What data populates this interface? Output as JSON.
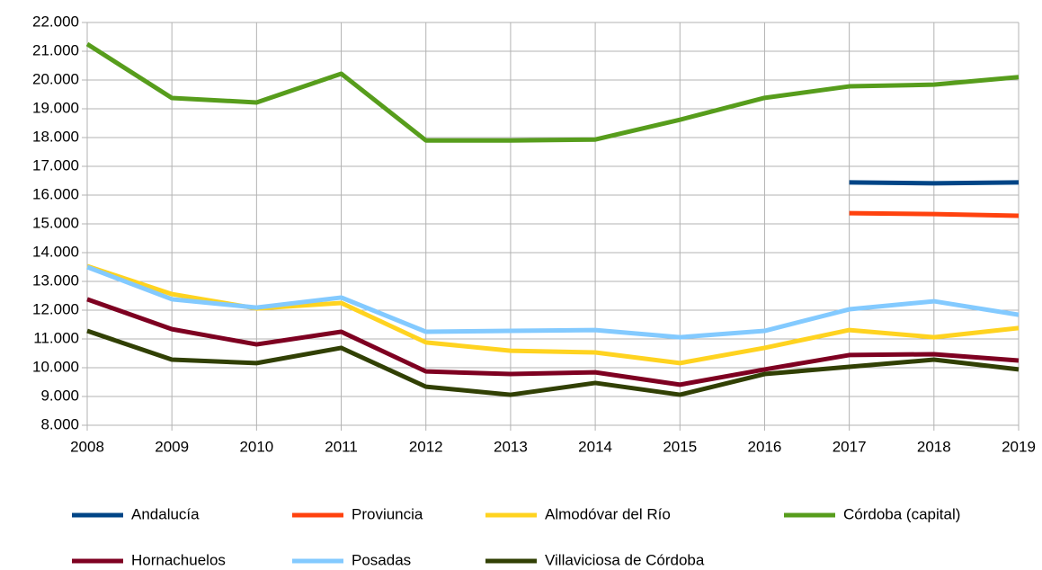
{
  "chart_data": {
    "type": "line",
    "categories": [
      "2008",
      "2009",
      "2010",
      "2011",
      "2012",
      "2013",
      "2014",
      "2015",
      "2016",
      "2017",
      "2018",
      "2019"
    ],
    "ylim": [
      8000,
      22000
    ],
    "yticks": [
      {
        "value": 8000,
        "label": "8.000"
      },
      {
        "value": 9000,
        "label": "9.000"
      },
      {
        "value": 10000,
        "label": "10.000"
      },
      {
        "value": 11000,
        "label": "11.000"
      },
      {
        "value": 12000,
        "label": "12.000"
      },
      {
        "value": 13000,
        "label": "13.000"
      },
      {
        "value": 14000,
        "label": "14.000"
      },
      {
        "value": 15000,
        "label": "15.000"
      },
      {
        "value": 16000,
        "label": "16.000"
      },
      {
        "value": 17000,
        "label": "17.000"
      },
      {
        "value": 18000,
        "label": "18.000"
      },
      {
        "value": 19000,
        "label": "19.000"
      },
      {
        "value": 20000,
        "label": "20.000"
      },
      {
        "value": 21000,
        "label": "21.000"
      },
      {
        "value": 22000,
        "label": "22.000"
      }
    ],
    "grid": true,
    "legend": "bottom",
    "series": [
      {
        "name": "Andalucía",
        "color": "#004586",
        "values": [
          null,
          null,
          null,
          null,
          null,
          null,
          null,
          null,
          null,
          16440,
          16410,
          16440
        ]
      },
      {
        "name": "Proviuncia",
        "color": "#ff420e",
        "values": [
          null,
          null,
          null,
          null,
          null,
          null,
          null,
          null,
          null,
          15370,
          15340,
          15280
        ]
      },
      {
        "name": "Almodóvar del Río",
        "color": "#ffd320",
        "values": [
          13530,
          12560,
          12060,
          12250,
          10880,
          10590,
          10530,
          10160,
          10690,
          11310,
          11060,
          11380
        ]
      },
      {
        "name": "Córdoba (capital)",
        "color": "#579d1c",
        "values": [
          21250,
          19375,
          19220,
          20220,
          17900,
          17900,
          17930,
          18620,
          19380,
          19780,
          19840,
          20100
        ]
      },
      {
        "name": "Hornachuelos",
        "color": "#7e0021",
        "values": [
          12380,
          11340,
          10810,
          11250,
          9870,
          9780,
          9840,
          9410,
          9940,
          10440,
          10470,
          10250
        ]
      },
      {
        "name": "Posadas",
        "color": "#83caff",
        "values": [
          13500,
          12380,
          12090,
          12440,
          11250,
          11280,
          11310,
          11060,
          11280,
          12030,
          12310,
          11840
        ]
      },
      {
        "name": "Villaviciosa de Córdoba",
        "color": "#314004",
        "values": [
          11280,
          10280,
          10160,
          10690,
          9340,
          9060,
          9470,
          9060,
          9780,
          10030,
          10280,
          9940
        ]
      }
    ]
  }
}
